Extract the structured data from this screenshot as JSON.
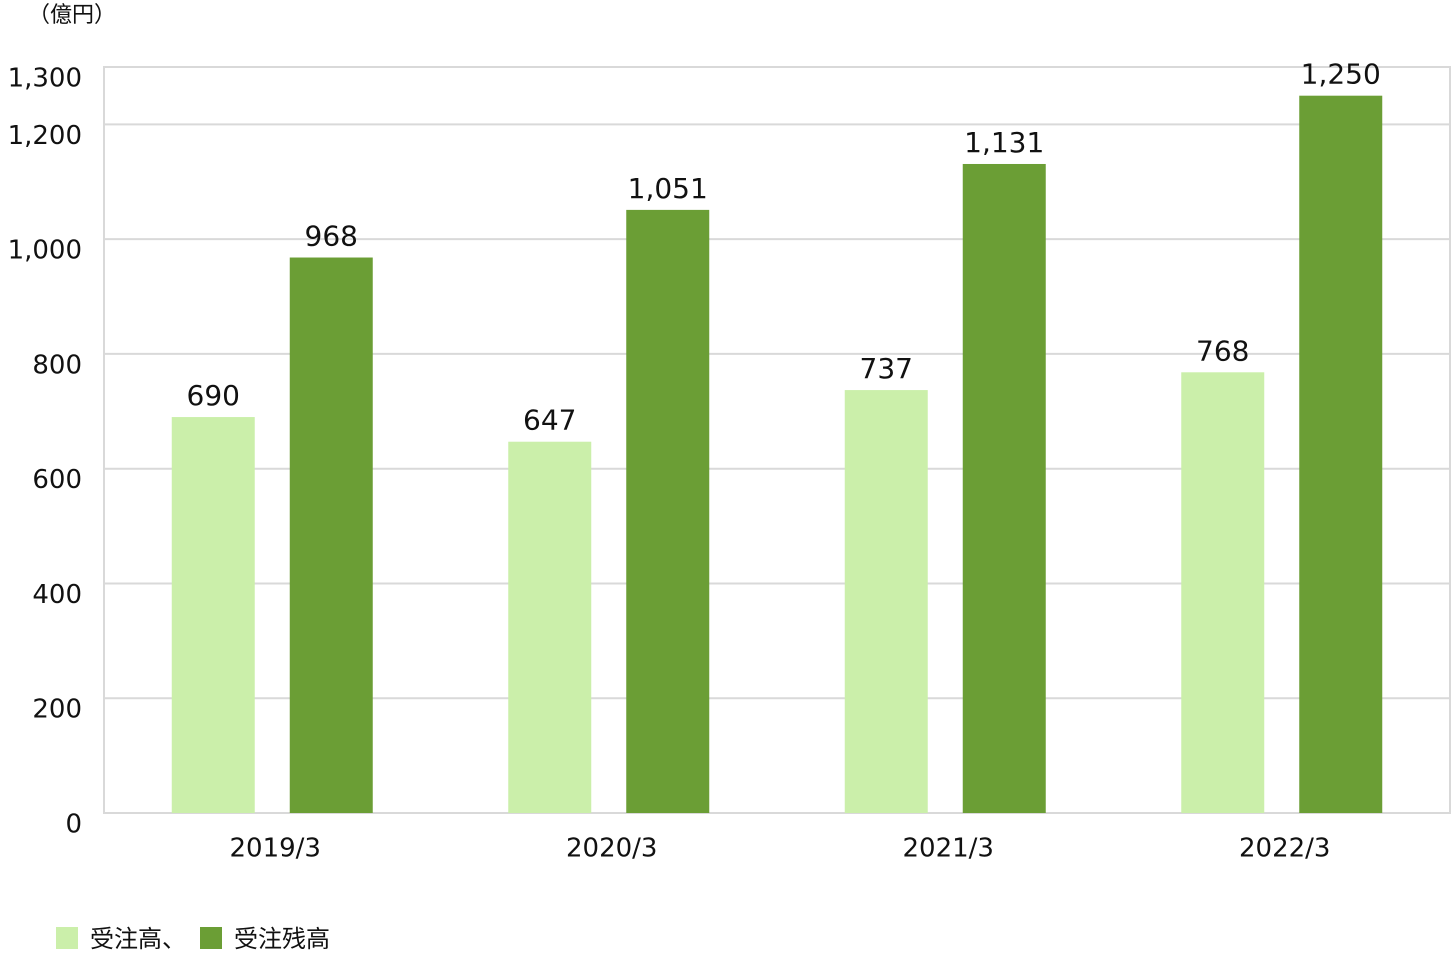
{
  "chart_data": {
    "type": "bar",
    "y_label": "（億円）",
    "categories": [
      "2019/3",
      "2020/3",
      "2021/3",
      "2022/3"
    ],
    "series": [
      {
        "name": "受注高、",
        "color": "#cbefaa",
        "values": [
          690,
          647,
          737,
          768
        ]
      },
      {
        "name": "受注残高",
        "color": "#6b9e35",
        "values": [
          968,
          1051,
          1131,
          1250
        ],
        "value_labels": [
          "968",
          "1,051",
          "1,131",
          "1,250"
        ]
      }
    ],
    "ylim": [
      0,
      1300
    ],
    "yticks": [
      0,
      200,
      400,
      600,
      800,
      {
        "value": 1000,
        "label": "1,000"
      },
      {
        "value": 1200,
        "label": "1,200"
      },
      {
        "value": 1300,
        "label": "1,300"
      }
    ],
    "grid": true
  }
}
